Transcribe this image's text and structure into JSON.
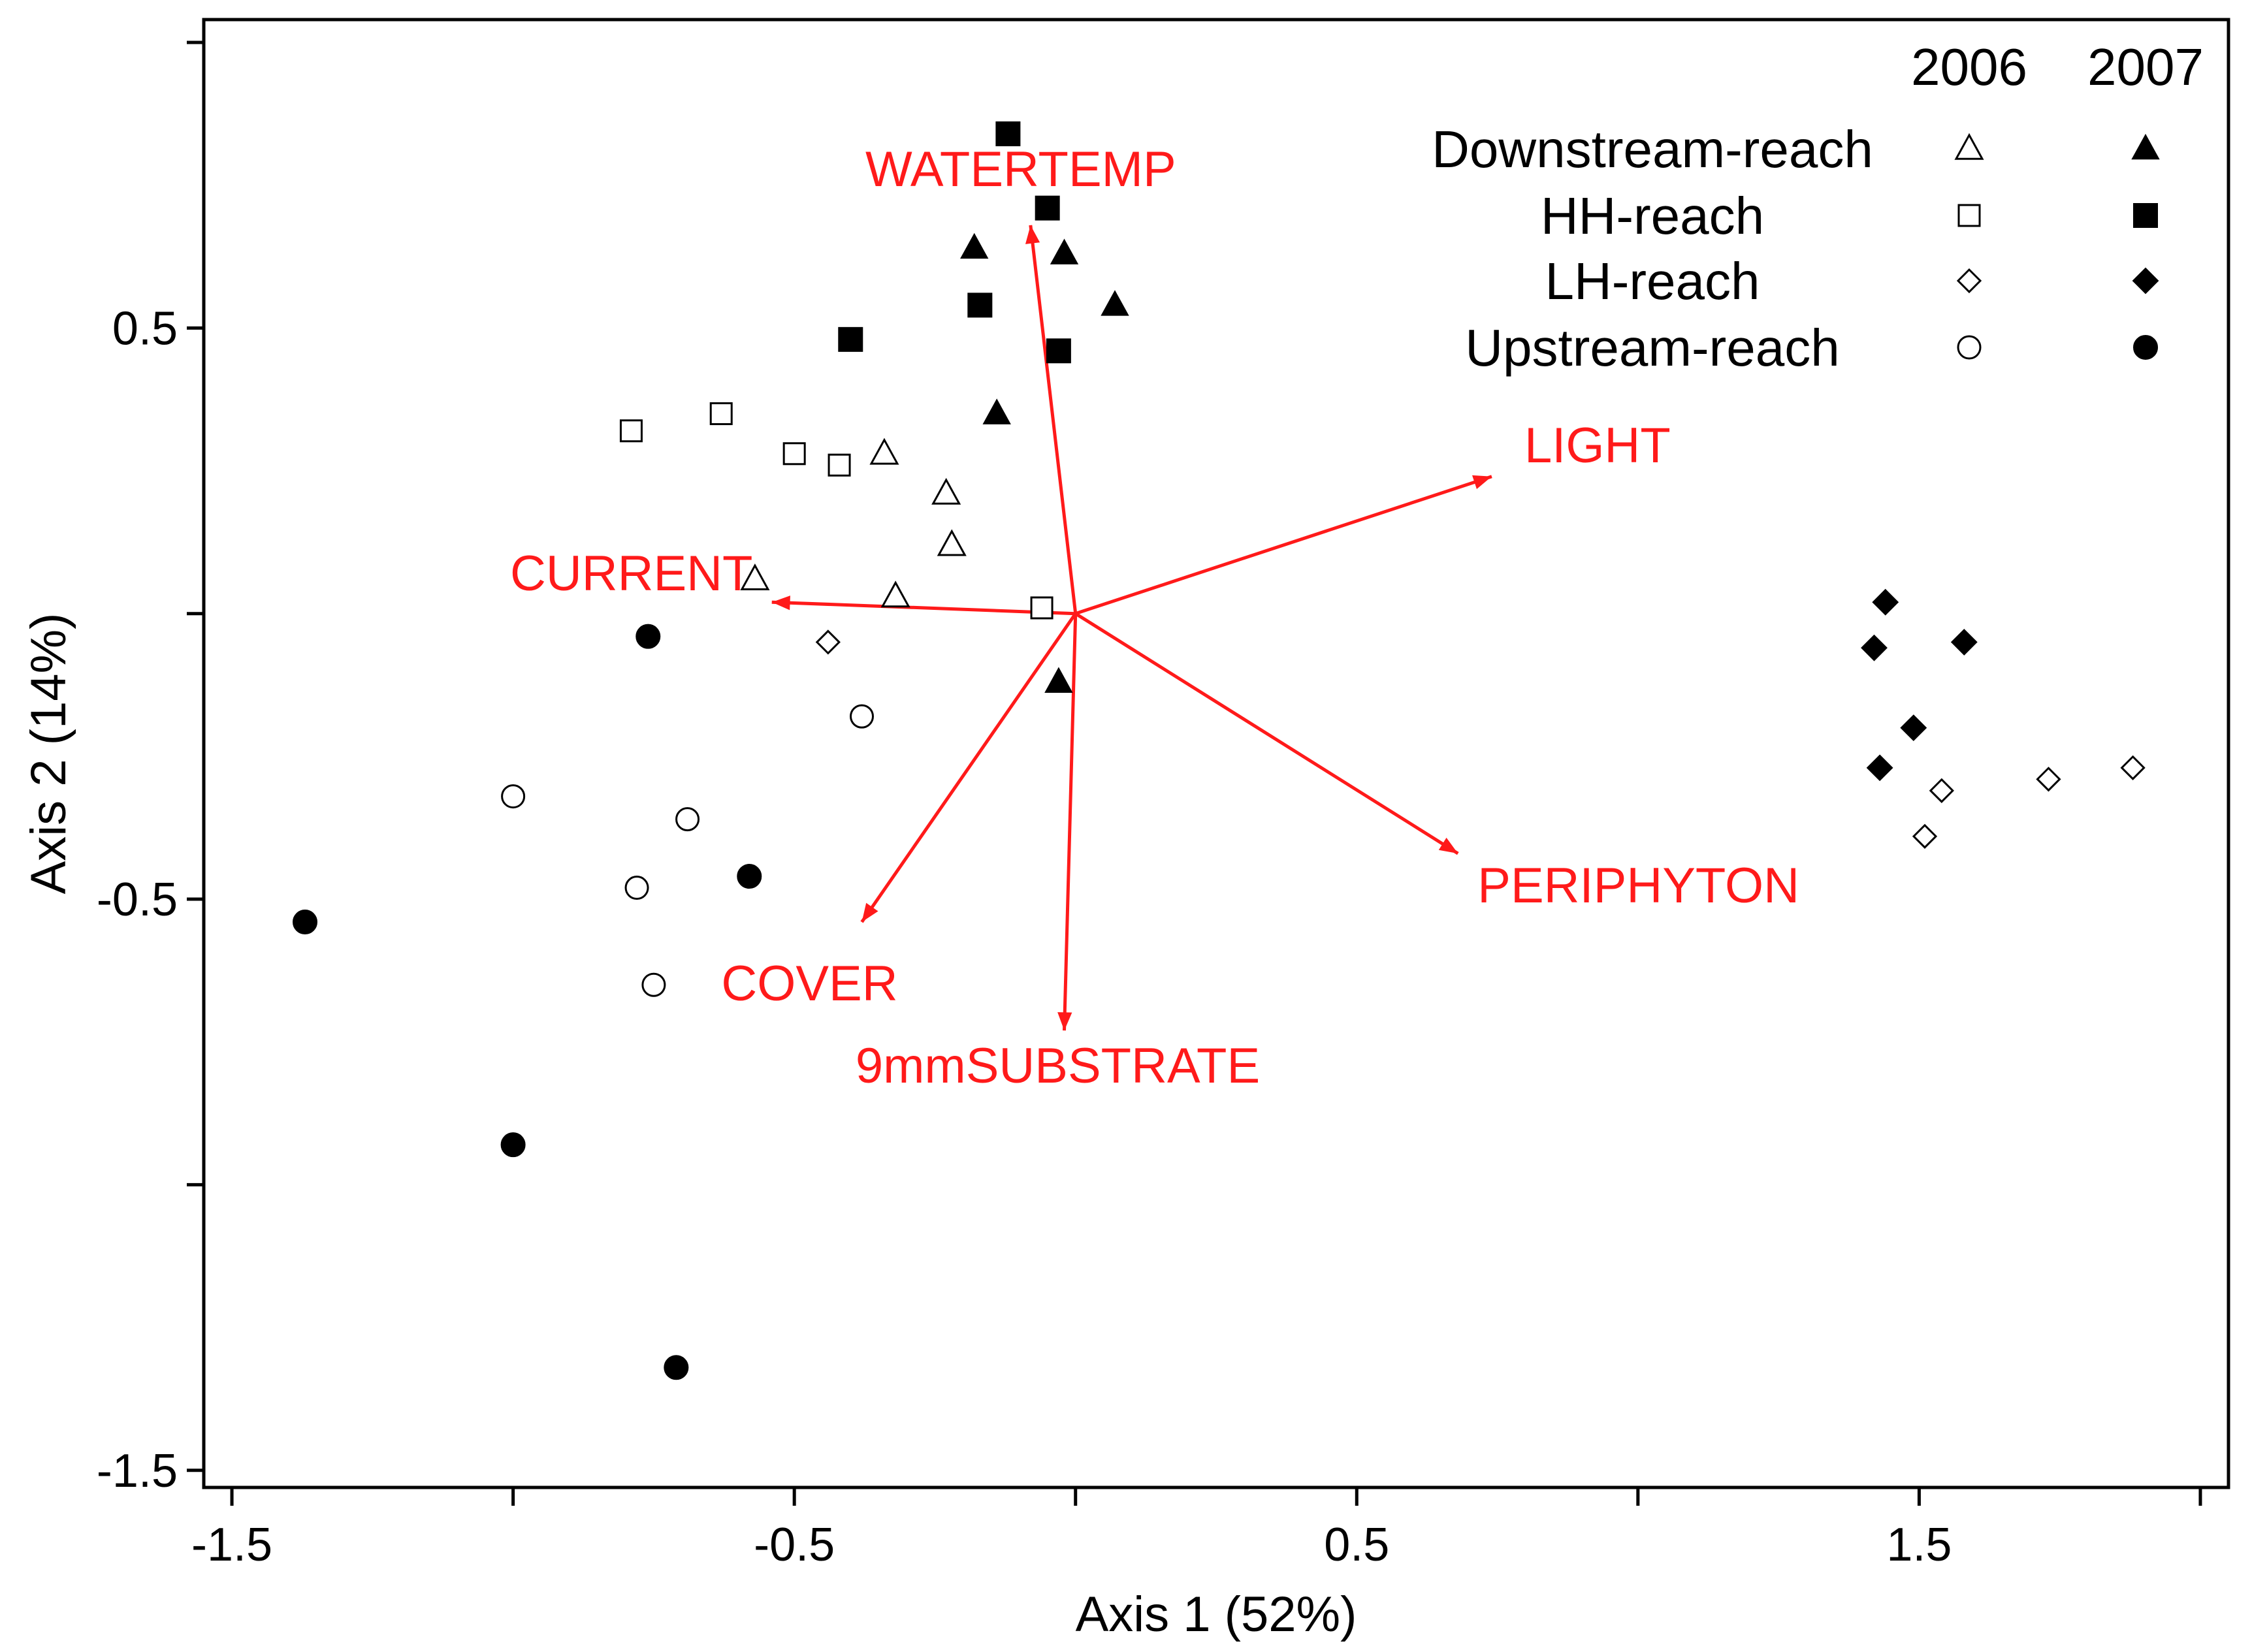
{
  "chart_data": {
    "type": "scatter",
    "title": "",
    "xlabel": "Axis 1 (52%)",
    "ylabel": "Axis 2 (14%)",
    "xlim": [
      -1.55,
      2.05
    ],
    "ylim": [
      -1.53,
      1.04
    ],
    "x_ticks": [
      -1.5,
      -1,
      -0.5,
      0,
      0.5,
      1,
      1.5,
      2
    ],
    "y_ticks": [
      -1.5,
      -1,
      -0.5,
      0,
      0.5,
      1
    ],
    "x_tick_labels": [
      {
        "value": -1.5,
        "label": "-1.5"
      },
      {
        "value": -0.5,
        "label": "-0.5"
      },
      {
        "value": 0.5,
        "label": "0.5"
      },
      {
        "value": 1.5,
        "label": "1.5"
      }
    ],
    "y_tick_labels": [
      {
        "value": 0.5,
        "label": "0.5"
      },
      {
        "value": -0.5,
        "label": "-0.5"
      },
      {
        "value": -1.5,
        "label": "-1.5"
      }
    ],
    "grid": false,
    "legend": {
      "position": "top-right",
      "year_headers": [
        "2006",
        "2007"
      ],
      "entries": [
        {
          "label": "Downstream-reach",
          "shape": "triangle"
        },
        {
          "label": "HH-reach",
          "shape": "square"
        },
        {
          "label": "LH-reach",
          "shape": "diamond"
        },
        {
          "label": "Upstream-reach",
          "shape": "circle"
        }
      ]
    },
    "series": [
      {
        "name": "Downstream-reach 2006",
        "shape": "triangle",
        "filled": false,
        "points": [
          [
            -0.34,
            0.28
          ],
          [
            -0.23,
            0.21
          ],
          [
            -0.22,
            0.12
          ],
          [
            -0.57,
            0.06
          ],
          [
            -0.32,
            0.03
          ]
        ]
      },
      {
        "name": "Downstream-reach 2007",
        "shape": "triangle",
        "filled": true,
        "points": [
          [
            -0.18,
            0.64
          ],
          [
            -0.02,
            0.63
          ],
          [
            0.07,
            0.54
          ],
          [
            -0.14,
            0.35
          ],
          [
            -0.03,
            -0.12
          ]
        ]
      },
      {
        "name": "HH-reach 2006",
        "shape": "square",
        "filled": false,
        "points": [
          [
            -0.79,
            0.32
          ],
          [
            -0.63,
            0.35
          ],
          [
            -0.5,
            0.28
          ],
          [
            -0.42,
            0.26
          ],
          [
            -0.06,
            0.01
          ]
        ]
      },
      {
        "name": "HH-reach 2007",
        "shape": "square",
        "filled": true,
        "points": [
          [
            -0.12,
            0.84
          ],
          [
            -0.05,
            0.71
          ],
          [
            -0.17,
            0.54
          ],
          [
            -0.4,
            0.48
          ],
          [
            -0.03,
            0.46
          ]
        ]
      },
      {
        "name": "LH-reach 2006",
        "shape": "diamond",
        "filled": false,
        "points": [
          [
            -0.44,
            -0.05
          ],
          [
            1.54,
            -0.31
          ],
          [
            1.51,
            -0.39
          ],
          [
            1.73,
            -0.29
          ],
          [
            1.88,
            -0.27
          ]
        ]
      },
      {
        "name": "LH-reach 2007",
        "shape": "diamond",
        "filled": true,
        "points": [
          [
            1.44,
            0.02
          ],
          [
            1.42,
            -0.06
          ],
          [
            1.58,
            -0.05
          ],
          [
            1.49,
            -0.2
          ],
          [
            1.43,
            -0.27
          ]
        ]
      },
      {
        "name": "Upstream-reach 2006",
        "shape": "circle",
        "filled": false,
        "points": [
          [
            -0.38,
            -0.18
          ],
          [
            -1.0,
            -0.32
          ],
          [
            -0.69,
            -0.36
          ],
          [
            -0.78,
            -0.48
          ],
          [
            -0.75,
            -0.65
          ]
        ]
      },
      {
        "name": "Upstream-reach 2007",
        "shape": "circle",
        "filled": true,
        "points": [
          [
            -0.76,
            -0.04
          ],
          [
            -0.58,
            -0.46
          ],
          [
            -1.37,
            -0.54
          ],
          [
            -1.0,
            -0.93
          ],
          [
            -0.71,
            -1.32
          ]
        ]
      }
    ],
    "vectors": [
      {
        "name": "WATERTEMP",
        "x": -0.08,
        "y": 0.68
      },
      {
        "name": "LIGHT",
        "x": 0.74,
        "y": 0.24
      },
      {
        "name": "CURRENT",
        "x": -0.54,
        "y": 0.02
      },
      {
        "name": "PERIPHYTON",
        "x": 0.68,
        "y": -0.42
      },
      {
        "name": "COVER",
        "x": -0.38,
        "y": -0.54
      },
      {
        "name": "9mmSUBSTRATE",
        "x": -0.02,
        "y": -0.73
      }
    ],
    "vector_color": "#ff1a1a",
    "marker_color": "#000000"
  }
}
